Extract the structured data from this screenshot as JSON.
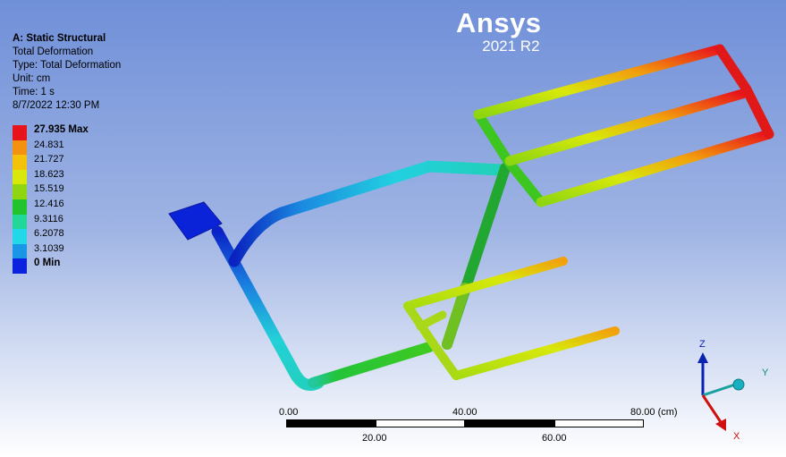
{
  "info": {
    "title": "A: Static Structural",
    "result": "Total Deformation",
    "type": "Type: Total Deformation",
    "unit": "Unit: cm",
    "time": "Time: 1 s",
    "date": "8/7/2022 12:30 PM"
  },
  "legend": [
    {
      "label": "27.935 Max",
      "color": "#e8141b",
      "bold": true
    },
    {
      "label": "24.831",
      "color": "#f29210",
      "bold": false
    },
    {
      "label": "21.727",
      "color": "#f4c20a",
      "bold": false
    },
    {
      "label": "18.623",
      "color": "#d8e80a",
      "bold": false
    },
    {
      "label": "15.519",
      "color": "#8fd610",
      "bold": false
    },
    {
      "label": "12.416",
      "color": "#22c42e",
      "bold": false
    },
    {
      "label": "9.3116",
      "color": "#22d898",
      "bold": false
    },
    {
      "label": "6.2078",
      "color": "#22d8e8",
      "bold": false
    },
    {
      "label": "3.1039",
      "color": "#1a96e6",
      "bold": false
    },
    {
      "label": "0 Min",
      "color": "#0a22e0",
      "bold": true
    }
  ],
  "brand": {
    "name": "Ansys",
    "version": "2021 R2"
  },
  "scale": {
    "top_labels": [
      "0.00",
      "40.00",
      "80.00 (cm)"
    ],
    "bottom_labels": [
      "20.00",
      "60.00"
    ]
  },
  "triad": {
    "z": "Z",
    "y": "Y",
    "x": "X"
  }
}
